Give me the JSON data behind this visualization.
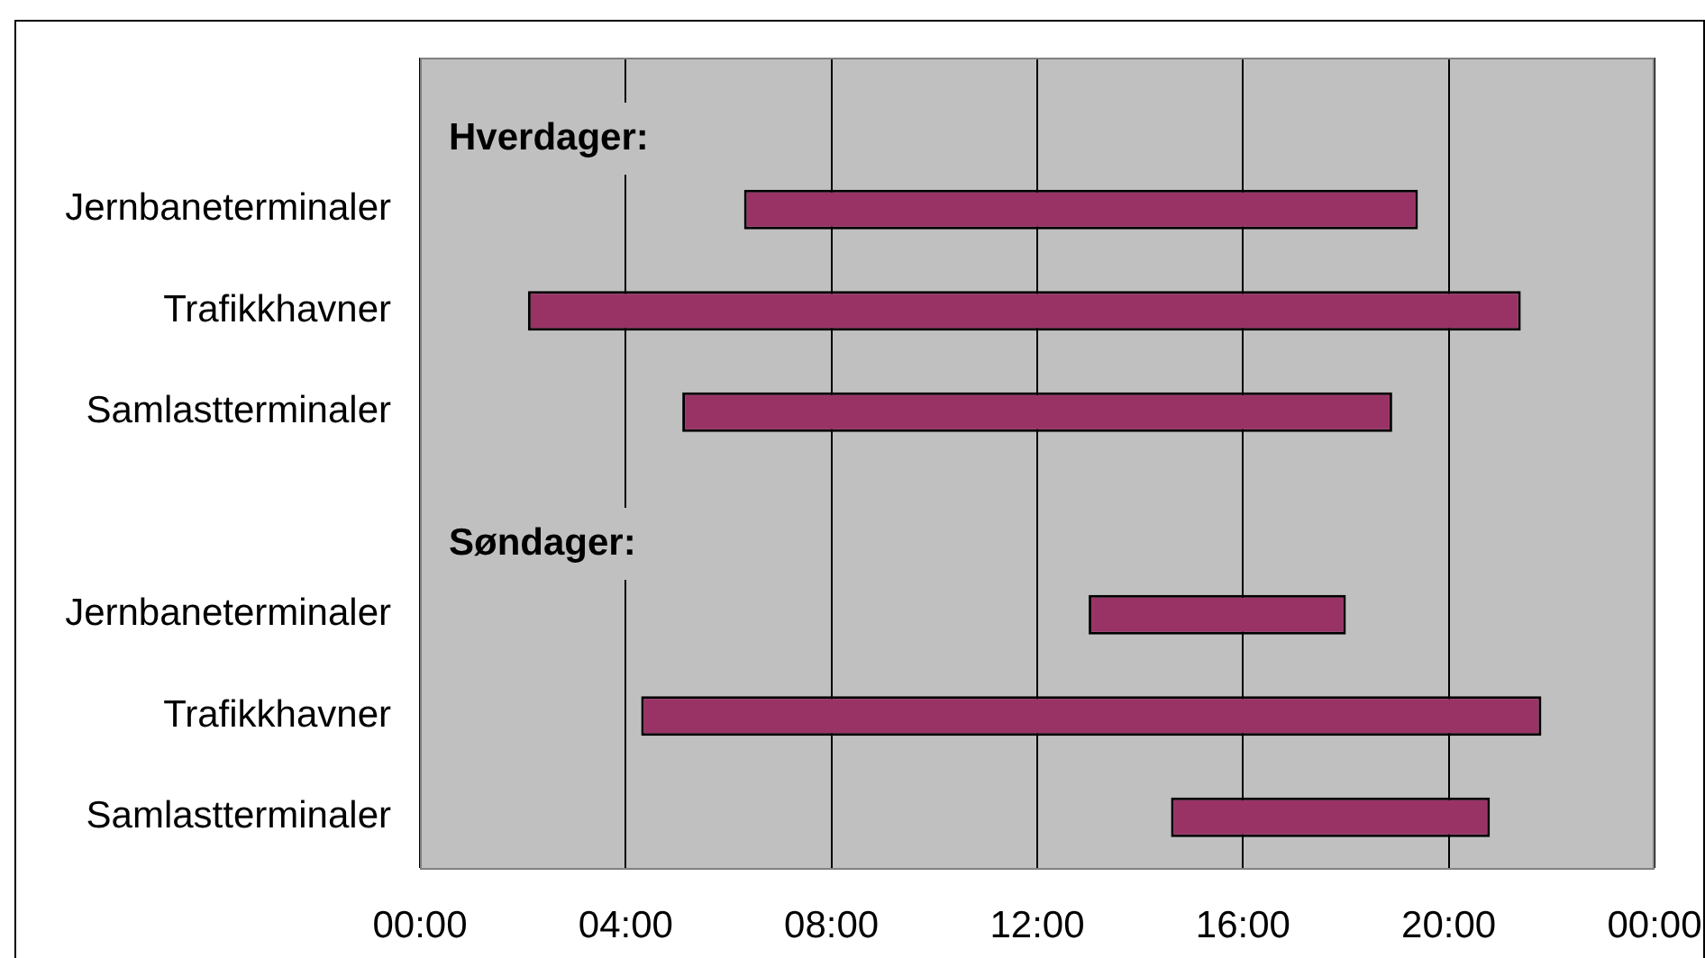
{
  "chart_data": {
    "type": "bar",
    "orientation": "horizontal",
    "categories": [
      null,
      "Jernbaneterminaler",
      "Trafikkhavner",
      "Samlastterminaler",
      null,
      "Jernbaneterminaler",
      "Trafikkhavner",
      "Samlastterminaler"
    ],
    "base": [
      null,
      6.3,
      2.1,
      5.1,
      null,
      13,
      4.3,
      14.6
    ],
    "values": [
      null,
      13.1,
      19.3,
      13.8,
      null,
      5,
      17.5,
      6.2
    ],
    "color": "#993366",
    "xlim": [
      0,
      24
    ],
    "xticks": [
      {
        "value": 0,
        "label": "00:00"
      },
      {
        "value": 4,
        "label": "04:00"
      },
      {
        "value": 8,
        "label": "08:00"
      },
      {
        "value": 12,
        "label": "12:00"
      },
      {
        "value": 16,
        "label": "16:00"
      },
      {
        "value": 20,
        "label": "20:00"
      },
      {
        "value": 24,
        "label": "00:00"
      }
    ],
    "grid": "x",
    "annotations": [
      "Hverdager:",
      "Søndager:"
    ]
  }
}
